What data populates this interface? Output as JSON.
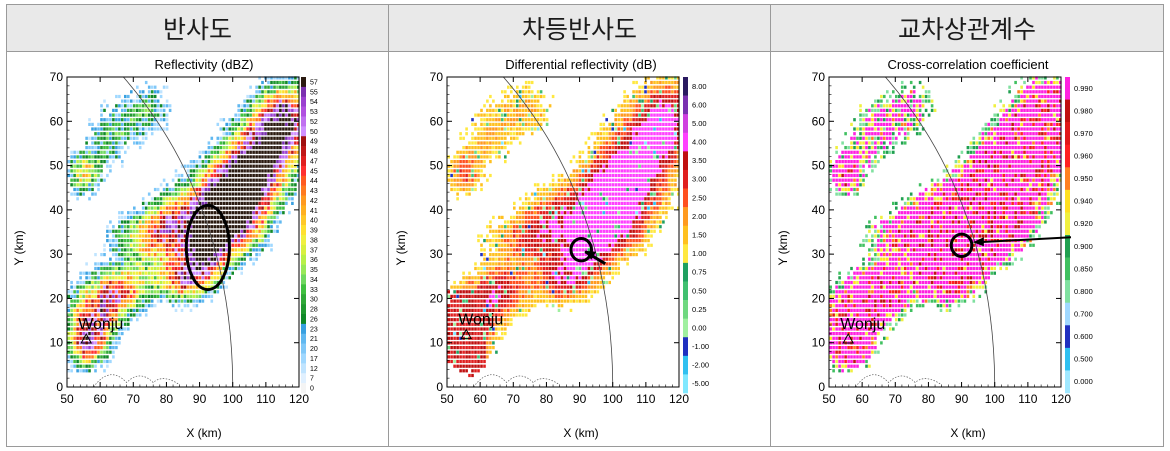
{
  "headers": [
    "반사도",
    "차등반사도",
    "교차상관계수"
  ],
  "chart_data": [
    {
      "type": "heatmap",
      "title": "Reflectivity (dBZ)",
      "xlabel": "X (km)",
      "ylabel": "Y (km)",
      "xlim": [
        50,
        120
      ],
      "ylim": [
        0,
        70
      ],
      "xticks": [
        50,
        60,
        70,
        80,
        90,
        100,
        110,
        120
      ],
      "yticks": [
        0,
        10,
        20,
        30,
        40,
        50,
        60,
        70
      ],
      "colorbar": {
        "labels": [
          "57",
          "55",
          "54",
          "53",
          "52",
          "50",
          "49",
          "48",
          "47",
          "45",
          "44",
          "43",
          "42",
          "41",
          "40",
          "39",
          "38",
          "37",
          "36",
          "35",
          "34",
          "33",
          "30",
          "28",
          "26",
          "23",
          "21",
          "20",
          "17",
          "12",
          "7",
          "0"
        ],
        "colors": [
          "#2a1a10",
          "#7a30b0",
          "#9a40d0",
          "#b050e0",
          "#c070f0",
          "#d090ff",
          "#a01010",
          "#c01818",
          "#e02020",
          "#ff3030",
          "#ff5a20",
          "#ff7a20",
          "#ff9a20",
          "#ffb020",
          "#ffc828",
          "#ffe030",
          "#f0f040",
          "#d8f040",
          "#b8f048",
          "#98e858",
          "#70d860",
          "#40c040",
          "#30a838",
          "#209830",
          "#108828",
          "#38a0e0",
          "#60b8f0",
          "#80c8f8",
          "#a0d8ff",
          "#c0e4ff",
          "#e0f0ff",
          "#f4f4f4"
        ]
      },
      "annotations": [
        {
          "text": "Wonju",
          "x": 57,
          "y": 14
        },
        {
          "shape": "ellipse",
          "cx": 92.5,
          "cy": 31.5,
          "rx": 6.5,
          "ry": 9.5
        }
      ]
    },
    {
      "type": "heatmap",
      "title": "Differential reflectivity (dB)",
      "xlabel": "X (km)",
      "ylabel": "Y (km)",
      "xlim": [
        50,
        120
      ],
      "ylim": [
        0,
        70
      ],
      "xticks": [
        50,
        60,
        70,
        80,
        90,
        100,
        110,
        120
      ],
      "yticks": [
        0,
        10,
        20,
        30,
        40,
        50,
        60,
        70
      ],
      "colorbar": {
        "labels": [
          "8.00",
          "6.00",
          "5.00",
          "4.00",
          "3.50",
          "3.00",
          "2.50",
          "2.00",
          "1.50",
          "1.00",
          "0.75",
          "0.50",
          "0.25",
          "0.00",
          "-1.00",
          "-2.00",
          "-5.00"
        ],
        "colors": [
          "#2a1a60",
          "#7a30b0",
          "#d040e0",
          "#ff40ff",
          "#c01010",
          "#e02020",
          "#ff5020",
          "#ff9a20",
          "#ffc020",
          "#ffe840",
          "#20a060",
          "#40c070",
          "#70d880",
          "#a0f0a0",
          "#2030c0",
          "#30c0f0",
          "#80e8ff"
        ]
      },
      "annotations": [
        {
          "text": "Wonju",
          "x": 57,
          "y": 15
        },
        {
          "shape": "circle",
          "cx": 90.5,
          "cy": 31,
          "r": 2.5
        }
      ]
    },
    {
      "type": "heatmap",
      "title": "Cross-correlation coefficient",
      "xlabel": "X (km)",
      "ylabel": "Y (km)",
      "xlim": [
        50,
        120
      ],
      "ylim": [
        0,
        70
      ],
      "xticks": [
        50,
        60,
        70,
        80,
        90,
        100,
        110,
        120
      ],
      "yticks": [
        0,
        10,
        20,
        30,
        40,
        50,
        60,
        70
      ],
      "colorbar": {
        "labels": [
          "0.990",
          "0.980",
          "0.970",
          "0.960",
          "0.950",
          "0.940",
          "0.920",
          "0.900",
          "0.850",
          "0.800",
          "0.700",
          "0.600",
          "0.500",
          "0.000"
        ],
        "colors": [
          "#ff20e0",
          "#c01010",
          "#e01818",
          "#ff2020",
          "#ff8020",
          "#ffe020",
          "#f0f040",
          "#20a050",
          "#40c060",
          "#80e0a0",
          "#a0d8ff",
          "#2030c0",
          "#30c0f0",
          "#a0e8ff"
        ]
      },
      "annotations": [
        {
          "text": "Wonju",
          "x": 57,
          "y": 14
        },
        {
          "shape": "circle",
          "cx": 90,
          "cy": 32,
          "r": 2.5
        }
      ]
    }
  ]
}
